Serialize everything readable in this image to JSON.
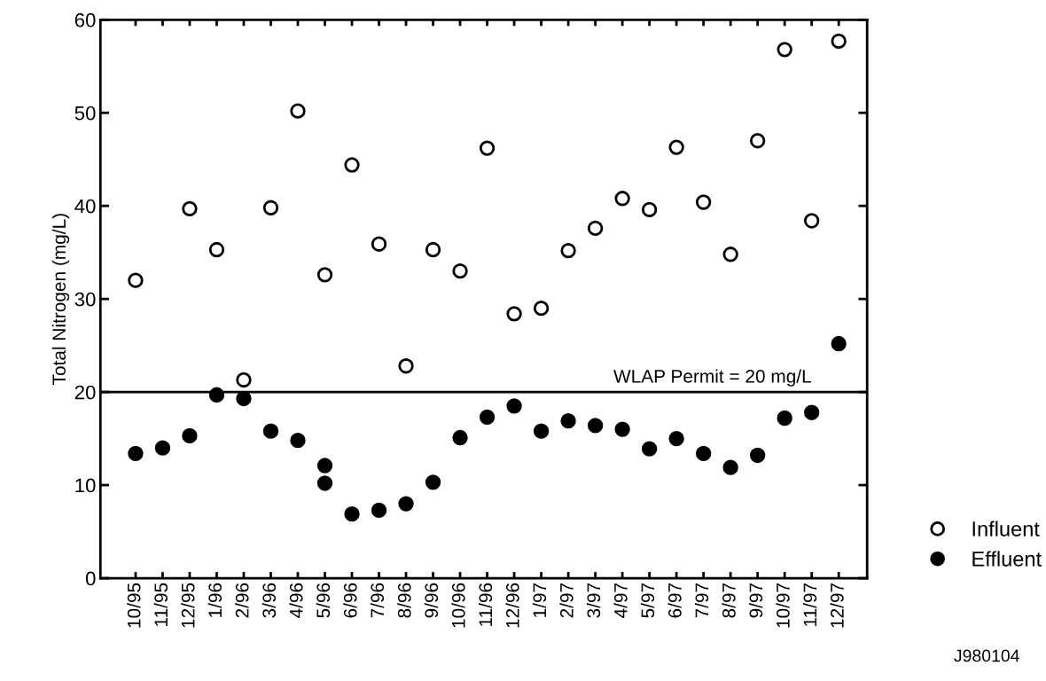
{
  "chart_data": {
    "type": "scatter",
    "ylabel": "Total Nitrogen (mg/L)",
    "categories": [
      "10/95",
      "11/95",
      "12/95",
      "1/96",
      "2/96",
      "3/96",
      "4/96",
      "5/96",
      "6/96",
      "7/96",
      "8/96",
      "9/96",
      "10/96",
      "11/96",
      "12/96",
      "1/97",
      "2/97",
      "3/97",
      "4/97",
      "5/97",
      "6/97",
      "7/97",
      "8/97",
      "9/97",
      "10/97",
      "11/97",
      "12/97"
    ],
    "series": [
      {
        "name": "Influent",
        "color": "#ffffff",
        "values": [
          32.0,
          null,
          39.7,
          35.3,
          21.3,
          39.8,
          50.2,
          32.6,
          44.4,
          35.9,
          22.8,
          35.3,
          33.0,
          46.2,
          28.4,
          29.0,
          35.2,
          37.6,
          40.8,
          39.6,
          46.3,
          40.4,
          34.8,
          47.0,
          56.8,
          38.4,
          57.7
        ]
      },
      {
        "name": "Effluent",
        "color": "#000000",
        "values": [
          13.4,
          14.0,
          15.3,
          19.7,
          19.3,
          15.8,
          14.8,
          12.1,
          6.9,
          7.3,
          8.0,
          10.3,
          15.1,
          17.3,
          18.5,
          15.8,
          16.9,
          16.4,
          16.0,
          13.9,
          15.0,
          13.4,
          11.9,
          13.2,
          17.2,
          17.8,
          25.2
        ]
      },
      {
        "color": "#000000",
        "values": [
          null,
          null,
          null,
          null,
          null,
          null,
          null,
          10.2,
          null,
          null,
          null,
          null,
          null,
          null,
          null,
          null,
          null,
          null,
          null,
          null,
          null,
          null,
          null,
          null,
          null,
          null,
          null
        ]
      }
    ],
    "ylim": [
      0,
      60
    ],
    "yticks": [
      0,
      10,
      20,
      30,
      40,
      50,
      60
    ],
    "ref_lines": [
      {
        "axis": "y",
        "value": 20,
        "label": "WLAP Permit = 20 mg/L",
        "color": "#000000"
      }
    ],
    "annotations": [
      "J980104"
    ],
    "marker": "circle",
    "grid": false,
    "legend": "bottom right"
  }
}
